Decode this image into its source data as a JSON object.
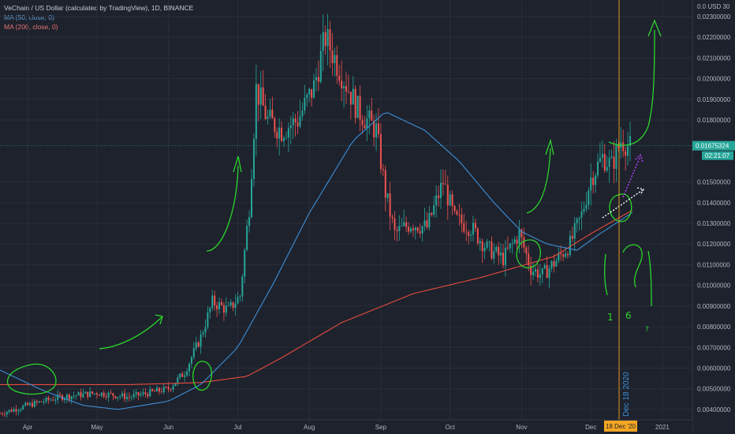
{
  "colors": {
    "background": "#1e222d",
    "grid": "#2a2e39",
    "up": "#26a69a",
    "down": "#ef5350",
    "ma50": "#3d8fd6",
    "ma200": "#e84c3d",
    "price_line": "#26a69a",
    "crosshair": "#f5a623",
    "annotation": "#2bd62b",
    "axis_text": "#b2b5be"
  },
  "legend": {
    "title": "VeChain / US Dollar (calculated by TradingView), 1D, BINANCE",
    "ma50": "MA (50, close, 0)",
    "ma200": "MA (200, close, 0)"
  },
  "chart_data": {
    "type": "candlestick",
    "title": "VeChain / US Dollar (calculated by TradingView), 1D, BINANCE",
    "x_ticks": [
      "Apr",
      "May",
      "Jun",
      "Jul",
      "Aug",
      "Sep",
      "Oct",
      "Nov",
      "Dec",
      "2021"
    ],
    "y_ticks": [
      "0.02300000",
      "0.02200000",
      "0.02100000",
      "0.02000000",
      "0.01900000",
      "0.01800000",
      "0.01500000",
      "0.01400000",
      "0.01300000",
      "0.01200000",
      "0.01100000",
      "0.01000000",
      "0.00900000",
      "0.00800000",
      "0.00700000",
      "0.00600000",
      "0.00500000",
      "0.00400000"
    ],
    "y_axis_header": "0.0  USD 30",
    "ylim": [
      0.0035,
      0.0238
    ],
    "current_price": "0.01675324",
    "countdown": "02:21:07",
    "crosshair_x_label": "18 Dec '20",
    "crosshair_vertical_label": "Dec 18 2020",
    "price_anchors": [
      [
        "2020-03-20",
        0.0038
      ],
      [
        "2020-04-01",
        0.0042
      ],
      [
        "2020-04-15",
        0.0046
      ],
      [
        "2020-05-01",
        0.0048
      ],
      [
        "2020-05-15",
        0.0046
      ],
      [
        "2020-06-01",
        0.005
      ],
      [
        "2020-06-08",
        0.0058
      ],
      [
        "2020-06-15",
        0.0075
      ],
      [
        "2020-06-20",
        0.0092
      ],
      [
        "2020-06-27",
        0.0088
      ],
      [
        "2020-07-02",
        0.0095
      ],
      [
        "2020-07-06",
        0.0138
      ],
      [
        "2020-07-09",
        0.0195
      ],
      [
        "2020-07-14",
        0.018
      ],
      [
        "2020-07-20",
        0.0175
      ],
      [
        "2020-07-27",
        0.018
      ],
      [
        "2020-08-03",
        0.0196
      ],
      [
        "2020-08-08",
        0.022
      ],
      [
        "2020-08-14",
        0.0205
      ],
      [
        "2020-08-22",
        0.0185
      ],
      [
        "2020-08-30",
        0.0175
      ],
      [
        "2020-09-03",
        0.0145
      ],
      [
        "2020-09-07",
        0.0125
      ],
      [
        "2020-09-14",
        0.013
      ],
      [
        "2020-09-21",
        0.0128
      ],
      [
        "2020-09-28",
        0.015
      ],
      [
        "2020-10-03",
        0.0132
      ],
      [
        "2020-10-10",
        0.0128
      ],
      [
        "2020-10-17",
        0.0118
      ],
      [
        "2020-10-24",
        0.0113
      ],
      [
        "2020-10-31",
        0.0125
      ],
      [
        "2020-11-05",
        0.0108
      ],
      [
        "2020-11-10",
        0.0105
      ],
      [
        "2020-11-16",
        0.0112
      ],
      [
        "2020-11-22",
        0.012
      ],
      [
        "2020-11-27",
        0.0134
      ],
      [
        "2020-12-01",
        0.0152
      ],
      [
        "2020-12-06",
        0.0162
      ],
      [
        "2020-12-10",
        0.0158
      ],
      [
        "2020-12-14",
        0.017
      ],
      [
        "2020-12-18",
        0.0167
      ]
    ],
    "ma50": [
      [
        "2020-03-20",
        0.0059
      ],
      [
        "2020-04-08",
        0.0049
      ],
      [
        "2020-04-25",
        0.0042
      ],
      [
        "2020-05-10",
        0.004
      ],
      [
        "2020-06-01",
        0.0044
      ],
      [
        "2020-06-15",
        0.0052
      ],
      [
        "2020-07-01",
        0.007
      ],
      [
        "2020-07-16",
        0.01
      ],
      [
        "2020-08-01",
        0.0135
      ],
      [
        "2020-08-20",
        0.017
      ],
      [
        "2020-09-03",
        0.0184
      ],
      [
        "2020-09-20",
        0.0175
      ],
      [
        "2020-10-05",
        0.016
      ],
      [
        "2020-10-20",
        0.014
      ],
      [
        "2020-11-01",
        0.0126
      ],
      [
        "2020-11-12",
        0.012
      ],
      [
        "2020-11-25",
        0.0117
      ],
      [
        "2020-12-05",
        0.0125
      ],
      [
        "2020-12-20",
        0.0136
      ]
    ],
    "ma200": [
      [
        "2020-03-20",
        0.0052
      ],
      [
        "2020-04-15",
        0.0052
      ],
      [
        "2020-05-15",
        0.0052
      ],
      [
        "2020-06-15",
        0.0053
      ],
      [
        "2020-07-05",
        0.0056
      ],
      [
        "2020-07-20",
        0.0065
      ],
      [
        "2020-08-15",
        0.0082
      ],
      [
        "2020-09-15",
        0.0096
      ],
      [
        "2020-10-15",
        0.0104
      ],
      [
        "2020-11-15",
        0.0114
      ],
      [
        "2020-12-01",
        0.0125
      ],
      [
        "2020-12-20",
        0.0137
      ]
    ],
    "annotations": [
      "1",
      "6",
      "?"
    ]
  }
}
